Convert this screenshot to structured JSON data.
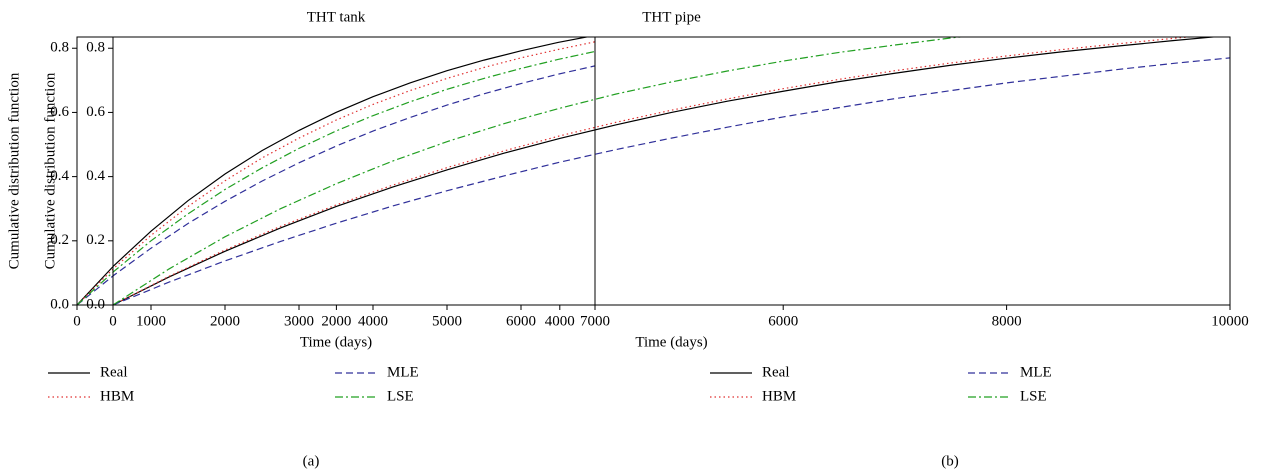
{
  "chart_data": [
    {
      "type": "line",
      "title": "THT tank",
      "caption": "(a)",
      "xlabel": "Time (days)",
      "ylabel": "Cumulative distribution function",
      "x": [
        0,
        500,
        1000,
        1500,
        2000,
        2500,
        3000,
        3500,
        4000,
        4500,
        5000,
        5500,
        6000,
        6500,
        7000
      ],
      "series": [
        {
          "name": "Real",
          "color": "#000000",
          "dash": "solid",
          "values": [
            0,
            0.123,
            0.23,
            0.325,
            0.408,
            0.481,
            0.544,
            0.6,
            0.649,
            0.692,
            0.73,
            0.763,
            0.792,
            0.818,
            0.84
          ]
        },
        {
          "name": "HBM",
          "color": "#e03030",
          "dash": "dotted",
          "values": [
            0,
            0.115,
            0.217,
            0.307,
            0.387,
            0.458,
            0.52,
            0.576,
            0.625,
            0.668,
            0.706,
            0.74,
            0.77,
            0.796,
            0.82
          ]
        },
        {
          "name": "MLE",
          "color": "#30309a",
          "dash": "dashed",
          "values": [
            0,
            0.093,
            0.177,
            0.254,
            0.323,
            0.386,
            0.443,
            0.495,
            0.542,
            0.584,
            0.623,
            0.658,
            0.69,
            0.719,
            0.745
          ]
        },
        {
          "name": "LSE",
          "color": "#22a022",
          "dash": "dashdot",
          "values": [
            0,
            0.105,
            0.2,
            0.284,
            0.36,
            0.427,
            0.488,
            0.542,
            0.59,
            0.633,
            0.672,
            0.706,
            0.737,
            0.765,
            0.79
          ]
        }
      ],
      "xlim": [
        0,
        7000
      ],
      "xticks": [
        0,
        1000,
        2000,
        3000,
        4000,
        5000,
        6000,
        7000
      ],
      "ylim": [
        0,
        0.835
      ],
      "yticks": [
        {
          "value": 0,
          "label": "0.0"
        },
        0.2,
        0.4,
        0.6,
        0.8
      ],
      "grid": false
    },
    {
      "type": "line",
      "title": "THT pipe",
      "caption": "(b)",
      "xlabel": "Time (days)",
      "ylabel": "Cumulative distribution function",
      "x": [
        0,
        500,
        1000,
        1500,
        2000,
        2500,
        3000,
        3500,
        4000,
        4500,
        5000,
        5500,
        6000,
        6500,
        7000,
        7500,
        8000,
        8500,
        9000,
        9500,
        10000
      ],
      "series": [
        {
          "name": "Real",
          "color": "#000000",
          "dash": "solid",
          "values": [
            0,
            0.087,
            0.167,
            0.24,
            0.307,
            0.367,
            0.422,
            0.473,
            0.519,
            0.561,
            0.6,
            0.635,
            0.666,
            0.696,
            0.722,
            0.747,
            0.769,
            0.789,
            0.807,
            0.824,
            0.84
          ]
        },
        {
          "name": "HBM",
          "color": "#e03030",
          "dash": "dotted",
          "values": [
            0,
            0.089,
            0.171,
            0.245,
            0.312,
            0.373,
            0.429,
            0.48,
            0.527,
            0.569,
            0.607,
            0.642,
            0.674,
            0.703,
            0.73,
            0.754,
            0.776,
            0.796,
            0.814,
            0.831,
            0.846
          ]
        },
        {
          "name": "MLE",
          "color": "#30309a",
          "dash": "dashed",
          "values": [
            0,
            0.071,
            0.137,
            0.198,
            0.255,
            0.308,
            0.357,
            0.402,
            0.445,
            0.484,
            0.52,
            0.554,
            0.586,
            0.615,
            0.643,
            0.668,
            0.692,
            0.713,
            0.734,
            0.753,
            0.77
          ]
        },
        {
          "name": "LSE",
          "color": "#22a022",
          "dash": "dashdot",
          "values": [
            0,
            0.112,
            0.212,
            0.3,
            0.378,
            0.448,
            0.51,
            0.565,
            0.613,
            0.657,
            0.695,
            0.729,
            0.76,
            0.787,
            0.81,
            0.832,
            0.851,
            null,
            null,
            null,
            null
          ]
        }
      ],
      "xlim": [
        0,
        10000
      ],
      "xticks": [
        0,
        2000,
        4000,
        6000,
        8000,
        10000
      ],
      "ylim": [
        0,
        0.835
      ],
      "yticks": [
        {
          "value": 0,
          "label": "0.0"
        },
        0.2,
        0.4,
        0.6,
        0.8
      ],
      "grid": false
    }
  ]
}
